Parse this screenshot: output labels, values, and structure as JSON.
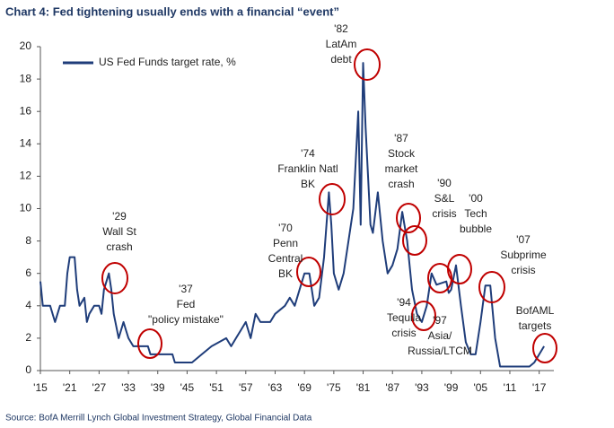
{
  "chart_data": {
    "type": "line",
    "title": "Chart 4: Fed tightening usually ends with a financial “event”",
    "source": "Source: BofA Merrill Lynch Global Investment Strategy, Global Financial Data",
    "legend": "top-left",
    "xlim": [
      1915,
      2020
    ],
    "ylim": [
      0,
      20
    ],
    "yticks": [
      0,
      2,
      4,
      6,
      8,
      10,
      12,
      14,
      16,
      18,
      20
    ],
    "xticks": [
      {
        "value": 1915,
        "label": "'15"
      },
      {
        "value": 1921,
        "label": "'21"
      },
      {
        "value": 1927,
        "label": "'27"
      },
      {
        "value": 1933,
        "label": "'33"
      },
      {
        "value": 1939,
        "label": "'39"
      },
      {
        "value": 1945,
        "label": "'45"
      },
      {
        "value": 1951,
        "label": "'51"
      },
      {
        "value": 1957,
        "label": "'57"
      },
      {
        "value": 1963,
        "label": "'63"
      },
      {
        "value": 1969,
        "label": "'69"
      },
      {
        "value": 1975,
        "label": "'75"
      },
      {
        "value": 1981,
        "label": "'81"
      },
      {
        "value": 1987,
        "label": "'87"
      },
      {
        "value": 1993,
        "label": "'93"
      },
      {
        "value": 1999,
        "label": "'99"
      },
      {
        "value": 2005,
        "label": "'05"
      },
      {
        "value": 2011,
        "label": "'11"
      },
      {
        "value": 2017,
        "label": "'17"
      }
    ],
    "x": [
      1915,
      1915.5,
      1917,
      1918,
      1919,
      1920,
      1920.5,
      1921,
      1922,
      1922.5,
      1923,
      1924,
      1924.5,
      1925,
      1926,
      1927,
      1927.5,
      1928,
      1929,
      1929.5,
      1930,
      1931,
      1932,
      1932.5,
      1933,
      1934,
      1937,
      1937.5,
      1942,
      1942.5,
      1946,
      1948,
      1950,
      1953,
      1954,
      1955,
      1956,
      1957,
      1958,
      1959,
      1960,
      1962,
      1963,
      1965,
      1966,
      1967,
      1968,
      1969,
      1970,
      1971,
      1972,
      1973,
      1974,
      1974.5,
      1975,
      1976,
      1977,
      1978,
      1979,
      1980,
      1980.5,
      1981,
      1981.5,
      1982,
      1982.5,
      1983,
      1984,
      1985,
      1986,
      1987,
      1988,
      1989,
      1990,
      1991,
      1992,
      1993,
      1994,
      1995,
      1996,
      1998,
      1998.5,
      1999,
      2000,
      2001,
      2002,
      2003,
      2004,
      2005,
      2006,
      2007,
      2008,
      2009,
      2015,
      2016,
      2017,
      2018
    ],
    "series": [
      {
        "name": "US Fed Funds target rate, %",
        "color": "#1f3d7a",
        "values": [
          5.5,
          4,
          4,
          3,
          4,
          4,
          6,
          7,
          7,
          5,
          4,
          4.5,
          3,
          3.5,
          4,
          4,
          3.5,
          5,
          6,
          5,
          3.5,
          2,
          3,
          2.5,
          2,
          1.5,
          1.5,
          1,
          1,
          0.5,
          0.5,
          1,
          1.5,
          2,
          1.5,
          2,
          2.5,
          3,
          2,
          3.5,
          3,
          3,
          3.5,
          4,
          4.5,
          4,
          5,
          6,
          6,
          4,
          4.5,
          7,
          11,
          9,
          6,
          5,
          6,
          8,
          10,
          16,
          9,
          19,
          15,
          12,
          9,
          8.5,
          11,
          8,
          6,
          6.5,
          7.5,
          9.8,
          8,
          5,
          3.5,
          3,
          4,
          6,
          5.3,
          5.5,
          4.8,
          5,
          6.5,
          4,
          1.75,
          1,
          1,
          3,
          5.25,
          5.25,
          2,
          0.25,
          0.25,
          0.5,
          1,
          1.5
        ]
      }
    ],
    "annotations": [
      [
        "'29",
        "Wall St",
        "crash"
      ],
      [
        "'37",
        "Fed",
        "\"policy mistake\""
      ],
      [
        "'70",
        "Penn",
        "Central",
        "BK"
      ],
      [
        "'74",
        "Franklin Natl",
        "BK"
      ],
      [
        "'82",
        "LatAm",
        "debt"
      ],
      [
        "'87",
        "Stock",
        "market",
        "crash"
      ],
      [
        "'90",
        "S&L",
        "crisis"
      ],
      [
        "'00",
        "Tech",
        "bubble"
      ],
      [
        "'07",
        "Subprime",
        "crisis"
      ],
      [
        "BofAML",
        "targets"
      ],
      [
        "'94",
        "Tequila",
        "crisis"
      ],
      [
        "'97",
        "Asia/",
        "Russia/LTCM"
      ]
    ]
  }
}
